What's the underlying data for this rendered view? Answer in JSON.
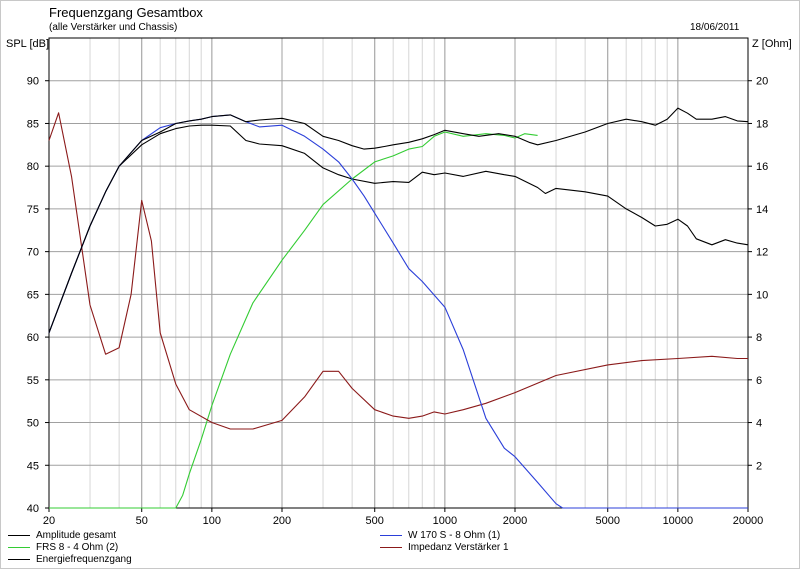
{
  "chart_data": {
    "type": "line",
    "title": "Frequenzgang Gesamtbox",
    "subtitle": "(alle Verstärker und Chassis)",
    "date": "18/06/2011",
    "ylabel_left": "SPL [dB]",
    "ylabel_right": "Z [Ohm]",
    "x_scale": "log",
    "xlim": [
      20,
      20000
    ],
    "ylim_left": [
      40,
      95
    ],
    "ylim_right": [
      0,
      22
    ],
    "x_ticks": [
      20,
      50,
      100,
      200,
      500,
      1000,
      2000,
      5000,
      10000,
      20000
    ],
    "x_tick_labels": [
      "20",
      "50",
      "100",
      "200",
      "500",
      "1000",
      "2000",
      "5000",
      "10000",
      "20000"
    ],
    "y_left_ticks": [
      40,
      45,
      50,
      55,
      60,
      65,
      70,
      75,
      80,
      85,
      90
    ],
    "y_right_ticks": [
      2,
      4,
      6,
      8,
      10,
      12,
      14,
      16,
      18,
      20
    ],
    "grid": true,
    "series": [
      {
        "name": "Amplitude gesamt",
        "color": "#000000",
        "axis": "left",
        "x": [
          20,
          25,
          30,
          35,
          40,
          50,
          60,
          70,
          80,
          90,
          100,
          120,
          140,
          160,
          200,
          250,
          300,
          350,
          400,
          450,
          500,
          550,
          600,
          700,
          800,
          900,
          1000,
          1200,
          1400,
          1700,
          2000,
          2300,
          2500,
          3000,
          4000,
          5000,
          6000,
          7000,
          8000,
          9000,
          10000,
          11000,
          12000,
          14000,
          16000,
          18000,
          20000
        ],
        "y": [
          60.5,
          67.5,
          73,
          77,
          80,
          83,
          84,
          85,
          85.3,
          85.5,
          85.8,
          86,
          85.2,
          85.4,
          85.6,
          85,
          83.5,
          83,
          82.4,
          82,
          82.1,
          82.3,
          82.5,
          82.8,
          83.2,
          83.7,
          84.2,
          83.8,
          83.5,
          83.8,
          83.5,
          82.8,
          82.5,
          83,
          84,
          85,
          85.5,
          85.2,
          84.8,
          85.5,
          86.8,
          86.2,
          85.5,
          85.5,
          85.8,
          85.3,
          85.2
        ]
      },
      {
        "name": "W 170 S - 8 Ohm (1)",
        "color": "#2b3fd9",
        "axis": "left",
        "x": [
          20,
          25,
          30,
          35,
          40,
          50,
          60,
          70,
          80,
          90,
          100,
          120,
          140,
          160,
          200,
          250,
          300,
          350,
          400,
          450,
          500,
          600,
          700,
          800,
          1000,
          1200,
          1500,
          1800,
          2000,
          2500,
          3000,
          3200,
          20000
        ],
        "y": [
          60.5,
          67.5,
          73,
          77,
          80,
          83,
          84.5,
          85,
          85.3,
          85.5,
          85.8,
          86,
          85.2,
          84.6,
          84.8,
          83.5,
          82,
          80.5,
          78.5,
          76.5,
          74.5,
          71,
          68,
          66.5,
          63.5,
          58.5,
          50.5,
          47,
          46,
          43,
          40.5,
          40,
          40
        ]
      },
      {
        "name": "FRS 8 - 4 Ohm (2)",
        "color": "#33cc33",
        "axis": "left",
        "x": [
          20,
          70,
          75,
          80,
          90,
          100,
          120,
          150,
          200,
          250,
          300,
          400,
          500,
          600,
          700,
          800,
          900,
          1000,
          1200,
          1500,
          1800,
          2000,
          2200,
          2500
        ],
        "y": [
          40,
          40,
          41.5,
          44,
          48,
          52,
          58,
          64,
          69,
          72.5,
          75.5,
          78.5,
          80.5,
          81.2,
          82,
          82.3,
          83.5,
          84,
          83.5,
          83.8,
          83.6,
          83.3,
          83.8,
          83.6
        ]
      },
      {
        "name": "Impedanz Verstärker 1",
        "color": "#8b1a1a",
        "axis": "right",
        "x": [
          20,
          22,
          25,
          30,
          35,
          40,
          45,
          50,
          55,
          60,
          70,
          80,
          100,
          120,
          150,
          200,
          250,
          300,
          350,
          400,
          500,
          600,
          700,
          800,
          900,
          1000,
          1200,
          1500,
          2000,
          3000,
          5000,
          7000,
          10000,
          14000,
          18000,
          20000
        ],
        "y": [
          17.2,
          18.5,
          15.5,
          9.5,
          7.2,
          7.5,
          10,
          14.4,
          12.5,
          8.2,
          5.8,
          4.6,
          4,
          3.7,
          3.7,
          4.1,
          5.2,
          6.4,
          6.4,
          5.6,
          4.6,
          4.3,
          4.2,
          4.3,
          4.5,
          4.4,
          4.6,
          4.9,
          5.4,
          6.2,
          6.7,
          6.9,
          7,
          7.1,
          7.0,
          7.0
        ]
      },
      {
        "name": "Energiefrequenzgang",
        "color": "#000000",
        "axis": "left",
        "x": [
          20,
          25,
          30,
          35,
          40,
          50,
          60,
          70,
          80,
          90,
          100,
          120,
          140,
          160,
          200,
          250,
          300,
          350,
          400,
          500,
          600,
          700,
          800,
          900,
          1000,
          1200,
          1500,
          1800,
          2000,
          2500,
          2700,
          3000,
          4000,
          5000,
          6000,
          7000,
          8000,
          9000,
          10000,
          11000,
          12000,
          14000,
          16000,
          18000,
          20000
        ],
        "y": [
          60.5,
          67.5,
          73,
          77,
          80,
          82.5,
          83.8,
          84.4,
          84.7,
          84.8,
          84.8,
          84.7,
          83,
          82.6,
          82.4,
          81.5,
          79.8,
          79,
          78.5,
          78,
          78.2,
          78.1,
          79.3,
          79,
          79.2,
          78.8,
          79.4,
          79,
          78.8,
          77.5,
          76.8,
          77.4,
          77,
          76.5,
          75,
          74,
          73,
          73.2,
          73.8,
          73,
          71.5,
          70.8,
          71.4,
          71,
          70.8
        ]
      }
    ]
  }
}
